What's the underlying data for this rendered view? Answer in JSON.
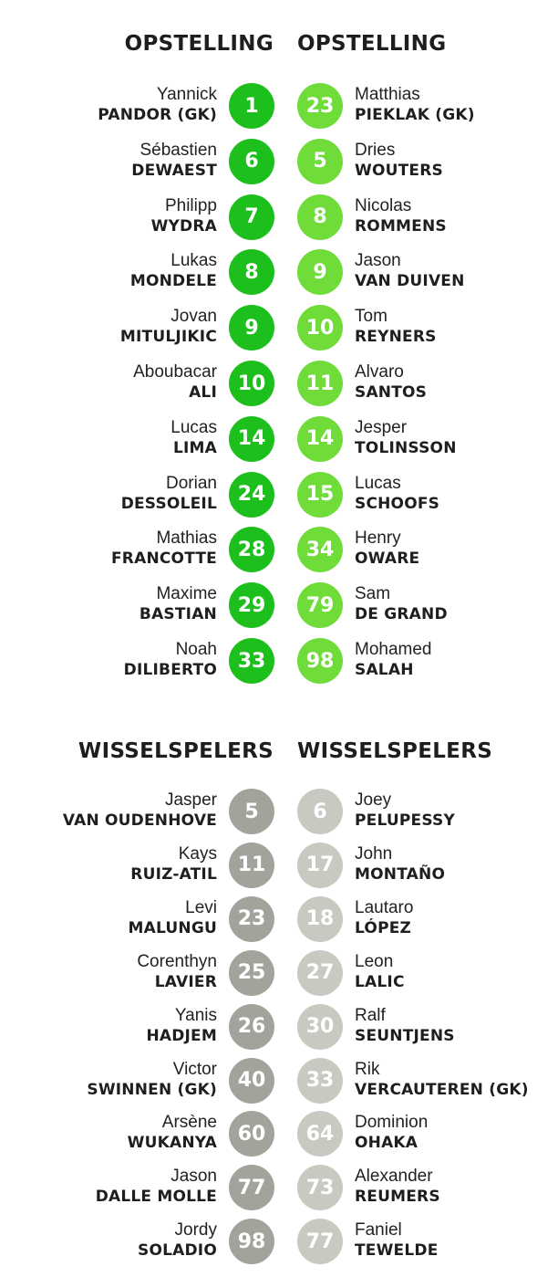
{
  "colors": {
    "home_starter": "#1cbf1c",
    "away_starter": "#6fdc3a",
    "home_sub": "#a3a39c",
    "away_sub": "#c9c9c2"
  },
  "lineup": {
    "home": {
      "heading": "OPSTELLING",
      "players": [
        {
          "number": "1",
          "first": "Yannick",
          "last": "PANDOR (GK)"
        },
        {
          "number": "6",
          "first": "Sébastien",
          "last": "DEWAEST"
        },
        {
          "number": "7",
          "first": "Philipp",
          "last": "WYDRA"
        },
        {
          "number": "8",
          "first": "Lukas",
          "last": "MONDELE"
        },
        {
          "number": "9",
          "first": "Jovan",
          "last": "MITULJIKIC"
        },
        {
          "number": "10",
          "first": "Aboubacar",
          "last": "ALI"
        },
        {
          "number": "14",
          "first": "Lucas",
          "last": "LIMA"
        },
        {
          "number": "24",
          "first": "Dorian",
          "last": "DESSOLEIL"
        },
        {
          "number": "28",
          "first": "Mathias",
          "last": "FRANCOTTE"
        },
        {
          "number": "29",
          "first": "Maxime",
          "last": "BASTIAN"
        },
        {
          "number": "33",
          "first": "Noah",
          "last": "DILIBERTO"
        }
      ]
    },
    "away": {
      "heading": "OPSTELLING",
      "players": [
        {
          "number": "23",
          "first": "Matthias",
          "last": "PIEKLAK (GK)"
        },
        {
          "number": "5",
          "first": "Dries",
          "last": "WOUTERS"
        },
        {
          "number": "8",
          "first": "Nicolas",
          "last": "ROMMENS"
        },
        {
          "number": "9",
          "first": "Jason",
          "last": "VAN DUIVEN"
        },
        {
          "number": "10",
          "first": "Tom",
          "last": "REYNERS"
        },
        {
          "number": "11",
          "first": "Alvaro",
          "last": "SANTOS"
        },
        {
          "number": "14",
          "first": "Jesper",
          "last": "TOLINSSON"
        },
        {
          "number": "15",
          "first": "Lucas",
          "last": "SCHOOFS"
        },
        {
          "number": "34",
          "first": "Henry",
          "last": "OWARE"
        },
        {
          "number": "79",
          "first": "Sam",
          "last": "DE GRAND"
        },
        {
          "number": "98",
          "first": "Mohamed",
          "last": "SALAH"
        }
      ]
    }
  },
  "subs": {
    "home": {
      "heading": "WISSELSPELERS",
      "players": [
        {
          "number": "5",
          "first": "Jasper",
          "last": "VAN OUDENHOVE"
        },
        {
          "number": "11",
          "first": "Kays",
          "last": "RUIZ-ATIL"
        },
        {
          "number": "23",
          "first": "Levi",
          "last": "MALUNGU"
        },
        {
          "number": "25",
          "first": "Corenthyn",
          "last": "LAVIER"
        },
        {
          "number": "26",
          "first": "Yanis",
          "last": "HADJEM"
        },
        {
          "number": "40",
          "first": "Victor",
          "last": "SWINNEN (GK)"
        },
        {
          "number": "60",
          "first": "Arsène",
          "last": "WUKANYA"
        },
        {
          "number": "77",
          "first": "Jason",
          "last": "DALLE MOLLE"
        },
        {
          "number": "98",
          "first": "Jordy",
          "last": "SOLADIO"
        }
      ]
    },
    "away": {
      "heading": "WISSELSPELERS",
      "players": [
        {
          "number": "6",
          "first": "Joey",
          "last": "PELUPESSY"
        },
        {
          "number": "17",
          "first": "John",
          "last": "MONTAÑO"
        },
        {
          "number": "18",
          "first": "Lautaro",
          "last": "LÓPEZ"
        },
        {
          "number": "27",
          "first": "Leon",
          "last": "LALIC"
        },
        {
          "number": "30",
          "first": "Ralf",
          "last": "SEUNTJENS"
        },
        {
          "number": "33",
          "first": "Rik",
          "last": "VERCAUTEREN (GK)"
        },
        {
          "number": "64",
          "first": "Dominion",
          "last": "OHAKA"
        },
        {
          "number": "73",
          "first": "Alexander",
          "last": "REUMERS"
        },
        {
          "number": "77",
          "first": "Faniel",
          "last": "TEWELDE"
        }
      ]
    }
  }
}
